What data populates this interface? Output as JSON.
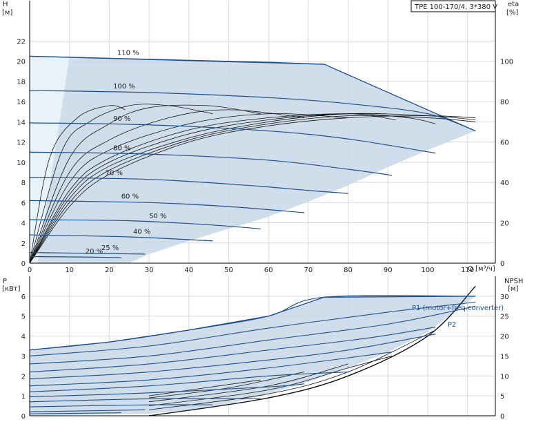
{
  "pump_model": "TPE 100-170/4, 3*380 V",
  "colors": {
    "envelope": "#c8d8e8",
    "envelope_light": "#e8f2fb",
    "curve": "#1f4e8c",
    "eta": "#111111",
    "grid": "#d9d9d9"
  },
  "chart_data": [
    {
      "type": "line",
      "panel": "top",
      "title": "",
      "xlabel": "Q [м³/ч]",
      "ylabel": "H\n[м]",
      "y2label": "eta\n[%]",
      "xlim": [
        0,
        117
      ],
      "ylim": [
        0,
        26
      ],
      "y2lim": [
        0,
        130
      ],
      "xticks": [
        0,
        10,
        20,
        30,
        40,
        50,
        60,
        70,
        80,
        90,
        100,
        110
      ],
      "yticks": [
        0,
        2,
        4,
        6,
        8,
        10,
        12,
        14,
        16,
        18,
        20,
        22
      ],
      "y2ticks": [
        0,
        20,
        40,
        60,
        80,
        100
      ],
      "grid": true,
      "envelope": {
        "upper": [
          [
            0,
            20.5
          ],
          [
            74,
            19.7
          ],
          [
            112,
            13.1
          ]
        ],
        "lower": [
          [
            112,
            13.1
          ],
          [
            100,
            11.2
          ],
          [
            90,
            9.5
          ],
          [
            80,
            7.7
          ],
          [
            70,
            6.1
          ],
          [
            60,
            4.6
          ],
          [
            50,
            3.4
          ],
          [
            40,
            2.2
          ],
          [
            30,
            0.9
          ],
          [
            25,
            0
          ]
        ]
      },
      "series": [
        {
          "label": "110 %",
          "points": [
            [
              0,
              20.5
            ],
            [
              20,
              20.3
            ],
            [
              40,
              20.1
            ],
            [
              60,
              19.9
            ],
            [
              74,
              19.7
            ]
          ]
        },
        {
          "label": "100 %",
          "points": [
            [
              0,
              17.1
            ],
            [
              30,
              16.9
            ],
            [
              60,
              16.4
            ],
            [
              80,
              15.8
            ],
            [
              100,
              14.8
            ],
            [
              112,
              13.1
            ]
          ]
        },
        {
          "label": "90 %",
          "points": [
            [
              0,
              13.9
            ],
            [
              30,
              13.7
            ],
            [
              60,
              13.1
            ],
            [
              80,
              12.3
            ],
            [
              102,
              10.9
            ]
          ]
        },
        {
          "label": "80 %",
          "points": [
            [
              0,
              11.0
            ],
            [
              30,
              10.8
            ],
            [
              60,
              10.2
            ],
            [
              80,
              9.3
            ],
            [
              91,
              8.7
            ]
          ]
        },
        {
          "label": "70 %",
          "points": [
            [
              0,
              8.5
            ],
            [
              30,
              8.3
            ],
            [
              55,
              7.7
            ],
            [
              70,
              7.2
            ],
            [
              80,
              6.9
            ]
          ]
        },
        {
          "label": "60 %",
          "points": [
            [
              0,
              6.2
            ],
            [
              30,
              6.0
            ],
            [
              50,
              5.6
            ],
            [
              69,
              5.0
            ]
          ]
        },
        {
          "label": "50 %",
          "points": [
            [
              0,
              4.3
            ],
            [
              25,
              4.2
            ],
            [
              45,
              3.8
            ],
            [
              58,
              3.4
            ]
          ]
        },
        {
          "label": "40 %",
          "points": [
            [
              0,
              2.8
            ],
            [
              25,
              2.6
            ],
            [
              46,
              2.2
            ]
          ]
        },
        {
          "label": "25 %",
          "points": [
            [
              0,
              1.05
            ],
            [
              20,
              0.95
            ],
            [
              29,
              0.9
            ]
          ]
        },
        {
          "label": "20 %",
          "points": [
            [
              0,
              0.65
            ],
            [
              15,
              0.6
            ],
            [
              23,
              0.55
            ]
          ]
        }
      ],
      "eta_series": [
        {
          "points": [
            [
              0,
              0
            ],
            [
              10,
              28
            ],
            [
              20,
              44
            ],
            [
              40,
              60
            ],
            [
              60,
              68
            ],
            [
              80,
              72
            ],
            [
              100,
              73
            ],
            [
              112,
              72
            ]
          ]
        },
        {
          "points": [
            [
              0,
              0
            ],
            [
              10,
              30
            ],
            [
              20,
              46
            ],
            [
              40,
              61
            ],
            [
              60,
              69
            ],
            [
              80,
              73
            ],
            [
              100,
              72
            ],
            [
              112,
              70
            ]
          ]
        },
        {
          "points": [
            [
              0,
              0
            ],
            [
              10,
              32
            ],
            [
              20,
              48
            ],
            [
              40,
              62
            ],
            [
              60,
              70
            ],
            [
              80,
              74
            ],
            [
              100,
              73
            ],
            [
              112,
              71
            ]
          ]
        },
        {
          "points": [
            [
              0,
              0
            ],
            [
              10,
              34
            ],
            [
              20,
              50
            ],
            [
              40,
              64
            ],
            [
              60,
              71
            ],
            [
              80,
              74
            ],
            [
              95,
              72
            ],
            [
              102,
              69
            ]
          ]
        },
        {
          "points": [
            [
              0,
              0
            ],
            [
              10,
              36
            ],
            [
              20,
              52
            ],
            [
              40,
              66
            ],
            [
              60,
              72
            ],
            [
              80,
              74
            ],
            [
              92,
              71
            ]
          ]
        },
        {
          "points": [
            [
              0,
              0
            ],
            [
              10,
              40
            ],
            [
              20,
              56
            ],
            [
              40,
              69
            ],
            [
              60,
              74
            ],
            [
              80,
              72
            ]
          ]
        },
        {
          "points": [
            [
              0,
              0
            ],
            [
              10,
              45
            ],
            [
              20,
              61
            ],
            [
              35,
              72
            ],
            [
              50,
              76
            ],
            [
              69,
              72
            ]
          ]
        },
        {
          "points": [
            [
              0,
              0
            ],
            [
              10,
              52
            ],
            [
              20,
              69
            ],
            [
              30,
              77
            ],
            [
              45,
              78
            ],
            [
              58,
              74
            ]
          ]
        },
        {
          "points": [
            [
              0,
              0
            ],
            [
              8,
              55
            ],
            [
              15,
              70
            ],
            [
              25,
              78
            ],
            [
              35,
              78
            ],
            [
              46,
              74
            ]
          ]
        },
        {
          "points": [
            [
              0,
              0
            ],
            [
              5,
              52
            ],
            [
              12,
              72
            ],
            [
              20,
              78
            ],
            [
              24,
              76
            ]
          ]
        }
      ],
      "annotations": [
        "110 %",
        "100 %",
        "90 %",
        "80 %",
        "70 %",
        "60 %",
        "50 %",
        "40 %",
        "25 %",
        "20 %"
      ]
    },
    {
      "type": "line",
      "panel": "bottom",
      "title": "",
      "xlabel": "",
      "ylabel": "P\n[кВт]",
      "y2label": "NPSH\n[м]",
      "xlim": [
        0,
        117
      ],
      "ylim": [
        0,
        7
      ],
      "y2lim": [
        0,
        35
      ],
      "yticks": [
        0,
        1,
        2,
        3,
        4,
        5,
        6
      ],
      "y2ticks": [
        0,
        5,
        10,
        15,
        20,
        25,
        30
      ],
      "grid": true,
      "envelope": {
        "upper": [
          [
            0,
            3.3
          ],
          [
            20,
            3.7
          ],
          [
            40,
            4.3
          ],
          [
            60,
            5.0
          ],
          [
            74,
            5.95
          ],
          [
            112,
            6.0
          ]
        ],
        "lower": [
          [
            112,
            6.0
          ],
          [
            100,
            4.2
          ],
          [
            90,
            3.2
          ],
          [
            80,
            2.4
          ],
          [
            70,
            1.7
          ],
          [
            60,
            1.1
          ],
          [
            50,
            0.6
          ],
          [
            40,
            0.3
          ],
          [
            30,
            0.1
          ],
          [
            0,
            0
          ]
        ]
      },
      "power_series": [
        {
          "label": "P1 (motor+freq.converter)",
          "points": [
            [
              0,
              3.3
            ],
            [
              20,
              3.7
            ],
            [
              40,
              4.3
            ],
            [
              60,
              5.0
            ],
            [
              74,
              5.95
            ],
            [
              112,
              6.0
            ]
          ]
        },
        {
          "label": "P2",
          "points": [
            [
              0,
              3.0
            ],
            [
              30,
              3.5
            ],
            [
              60,
              4.4
            ],
            [
              90,
              5.2
            ],
            [
              112,
              5.7
            ]
          ]
        },
        {
          "label": "",
          "points": [
            [
              0,
              2.6
            ],
            [
              30,
              3.0
            ],
            [
              60,
              3.8
            ],
            [
              90,
              4.6
            ],
            [
              112,
              5.5
            ]
          ]
        },
        {
          "label": "",
          "points": [
            [
              0,
              2.2
            ],
            [
              30,
              2.6
            ],
            [
              60,
              3.3
            ],
            [
              85,
              3.9
            ],
            [
              102,
              4.45
            ]
          ]
        },
        {
          "label": "",
          "points": [
            [
              0,
              1.85
            ],
            [
              30,
              2.2
            ],
            [
              60,
              2.8
            ],
            [
              80,
              3.3
            ],
            [
              102,
              4.1
            ]
          ]
        },
        {
          "label": "",
          "points": [
            [
              0,
              1.5
            ],
            [
              30,
              1.8
            ],
            [
              60,
              2.4
            ],
            [
              91,
              3.2
            ]
          ]
        },
        {
          "label": "",
          "points": [
            [
              0,
              1.2
            ],
            [
              30,
              1.5
            ],
            [
              60,
              2.0
            ],
            [
              80,
              2.2
            ]
          ]
        },
        {
          "label": "",
          "points": [
            [
              0,
              0.95
            ],
            [
              30,
              1.15
            ],
            [
              60,
              1.45
            ],
            [
              69,
              1.6
            ]
          ]
        },
        {
          "label": "",
          "points": [
            [
              0,
              0.7
            ],
            [
              30,
              0.85
            ],
            [
              58,
              0.85
            ]
          ]
        },
        {
          "label": "",
          "points": [
            [
              0,
              0.45
            ],
            [
              30,
              0.55
            ],
            [
              46,
              0.55
            ]
          ]
        },
        {
          "label": "",
          "points": [
            [
              0,
              0.2
            ],
            [
              29,
              0.3
            ]
          ]
        },
        {
          "label": "",
          "points": [
            [
              0,
              0.1
            ],
            [
              23,
              0.15
            ]
          ]
        }
      ],
      "npsh_series": [
        {
          "points": [
            [
              30,
              0
            ],
            [
              60,
              0.9
            ],
            [
              80,
              2.0
            ],
            [
              100,
              4.0
            ],
            [
              112,
              6.5
            ]
          ]
        },
        {
          "points": [
            [
              30,
              0.3
            ],
            [
              60,
              1.1
            ],
            [
              80,
              2.2
            ],
            [
              102,
              4.3
            ]
          ]
        },
        {
          "points": [
            [
              30,
              0.5
            ],
            [
              60,
              1.3
            ],
            [
              80,
              2.4
            ],
            [
              91,
              3.0
            ]
          ]
        },
        {
          "points": [
            [
              30,
              0.7
            ],
            [
              60,
              1.5
            ],
            [
              80,
              2.6
            ]
          ]
        },
        {
          "points": [
            [
              30,
              0.9
            ],
            [
              50,
              1.4
            ],
            [
              69,
              2.2
            ]
          ]
        },
        {
          "points": [
            [
              30,
              1.0
            ],
            [
              58,
              1.8
            ]
          ]
        }
      ],
      "annotations": [
        "P1 (motor+freq.converter)",
        "P2"
      ]
    }
  ]
}
